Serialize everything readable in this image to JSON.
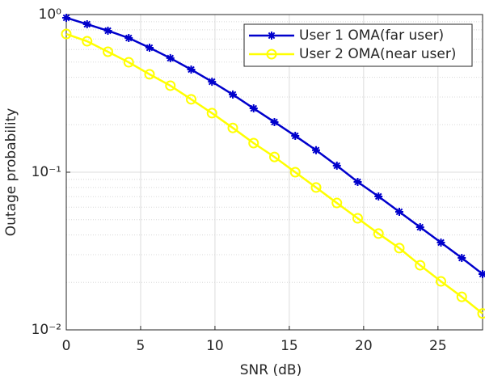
{
  "chart_data": {
    "type": "line",
    "xlabel": "SNR (dB)",
    "ylabel": "Outage probability",
    "x": [
      0,
      1.4,
      2.8,
      4.2,
      5.6,
      7,
      8.4,
      9.8,
      11.2,
      12.6,
      14,
      15.4,
      16.8,
      18.2,
      19.6,
      21,
      22.4,
      23.8,
      25.2,
      26.6,
      28
    ],
    "series": [
      {
        "name": "User 1 OMA(far user)",
        "color": "#0000cc",
        "marker": "asterisk",
        "values": [
          0.954,
          0.868,
          0.79,
          0.71,
          0.616,
          0.529,
          0.448,
          0.375,
          0.311,
          0.254,
          0.208,
          0.17,
          0.138,
          0.11,
          0.0868,
          0.0702,
          0.0561,
          0.0448,
          0.0358,
          0.0286,
          0.0226
        ]
      },
      {
        "name": "User 2 OMA(near user)",
        "color": "#ffff00",
        "marker": "circle",
        "values": [
          0.753,
          0.677,
          0.581,
          0.498,
          0.418,
          0.354,
          0.29,
          0.237,
          0.191,
          0.153,
          0.125,
          0.1,
          0.08,
          0.0638,
          0.051,
          0.0408,
          0.033,
          0.0257,
          0.0203,
          0.0162,
          0.0127
        ]
      }
    ],
    "xlim": [
      0,
      28
    ],
    "xticks": [
      0,
      5,
      10,
      15,
      20,
      25
    ],
    "ylim": [
      0.01,
      1
    ],
    "yscale": "log",
    "yticks": [
      {
        "value": 1,
        "label": "10⁰"
      },
      {
        "value": 0.1,
        "label": "10⁻¹"
      },
      {
        "value": 0.01,
        "label": "10⁻²"
      }
    ],
    "yminor_ticks": [
      0.02,
      0.03,
      0.04,
      0.05,
      0.06,
      0.07,
      0.08,
      0.09,
      0.2,
      0.3,
      0.4,
      0.5,
      0.6,
      0.7,
      0.8,
      0.9
    ],
    "grid": true,
    "minor_grid": true,
    "legend": "upper right"
  }
}
